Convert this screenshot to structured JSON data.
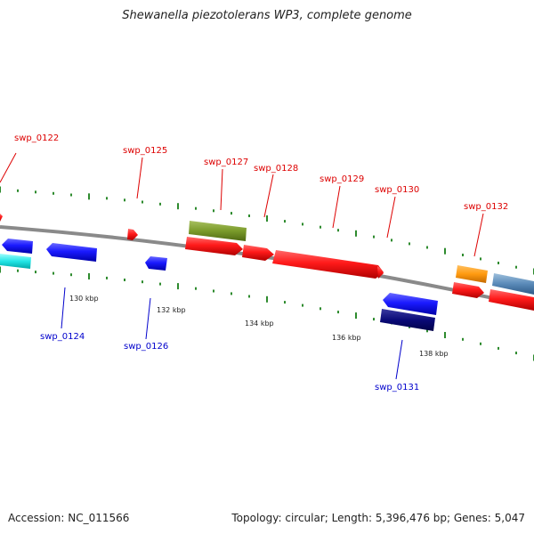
{
  "title": "Shewanella piezotolerans WP3, complete genome",
  "footer": {
    "accession": "Accession: NC_011566",
    "summary": "Topology: circular; Length: 5,396,476 bp; Genes: 5,047"
  },
  "colors": {
    "backbone": "#888888",
    "tick": "#2e8b2e",
    "top_label": "#dd0000",
    "bottom_label": "#0000cc"
  },
  "scale_labels": [
    "130 kbp",
    "132 kbp",
    "134 kbp",
    "136 kbp",
    "138 kbp"
  ],
  "top_genes": [
    {
      "label": "swp_0122"
    },
    {
      "label": "swp_0125"
    },
    {
      "label": "swp_0127"
    },
    {
      "label": "swp_0128"
    },
    {
      "label": "swp_0129"
    },
    {
      "label": "swp_0130"
    },
    {
      "label": "swp_0132"
    }
  ],
  "bottom_genes": [
    {
      "label": "swp_0124"
    },
    {
      "label": "swp_0126"
    },
    {
      "label": "swp_0131"
    }
  ]
}
